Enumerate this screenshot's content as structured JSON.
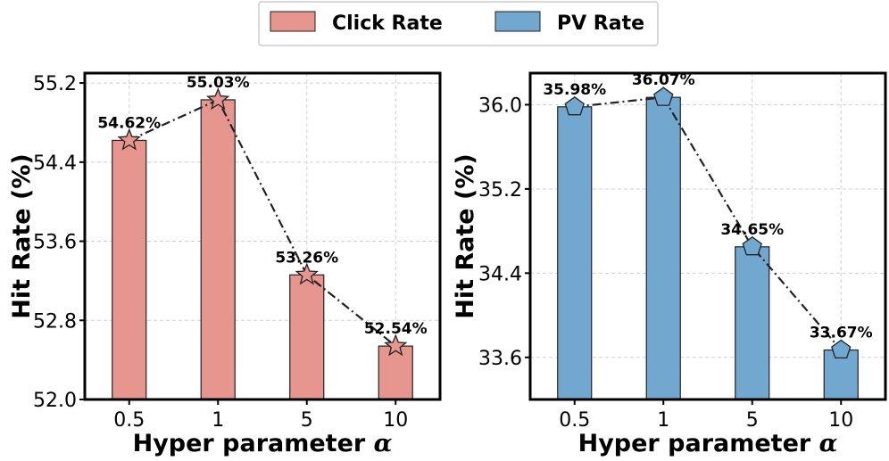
{
  "legend": {
    "items": [
      {
        "label": "Click Rate",
        "color": "#e6958f"
      },
      {
        "label": "PV Rate",
        "color": "#72a8d0"
      }
    ]
  },
  "chart_data": [
    {
      "type": "bar",
      "series_name": "Click Rate",
      "categories": [
        "0.5",
        "1",
        "5",
        "10"
      ],
      "values": [
        54.62,
        55.03,
        53.26,
        52.54
      ],
      "data_labels": [
        "54.62%",
        "55.03%",
        "53.26%",
        "52.54%"
      ],
      "overlay": "line-dashdot-star-markers",
      "xlabel_text": "Hyper parameter ",
      "xlabel_symbol": "α",
      "ylabel": "Hit Rate (%)",
      "ylim": [
        52.0,
        55.3
      ],
      "yticks": [
        52.0,
        52.8,
        53.6,
        54.4,
        55.2
      ],
      "ytick_labels": [
        "52.0",
        "52.8",
        "53.6",
        "54.4",
        "55.2"
      ],
      "grid": true,
      "bar_color": "#e6958f",
      "marker_color": "#e6958f"
    },
    {
      "type": "bar",
      "series_name": "PV Rate",
      "categories": [
        "0.5",
        "1",
        "5",
        "10"
      ],
      "values": [
        35.98,
        36.07,
        34.65,
        33.67
      ],
      "data_labels": [
        "35.98%",
        "36.07%",
        "34.65%",
        "33.67%"
      ],
      "overlay": "line-dashdot-pentagon-markers",
      "xlabel_text": "Hyper parameter ",
      "xlabel_symbol": "α",
      "ylabel": "Hit Rate (%)",
      "ylim": [
        33.2,
        36.3
      ],
      "yticks": [
        33.6,
        34.4,
        35.2,
        36.0
      ],
      "ytick_labels": [
        "33.6",
        "34.4",
        "35.2",
        "36.0"
      ],
      "grid": true,
      "bar_color": "#72a8d0",
      "marker_color": "#72a8d0"
    }
  ]
}
